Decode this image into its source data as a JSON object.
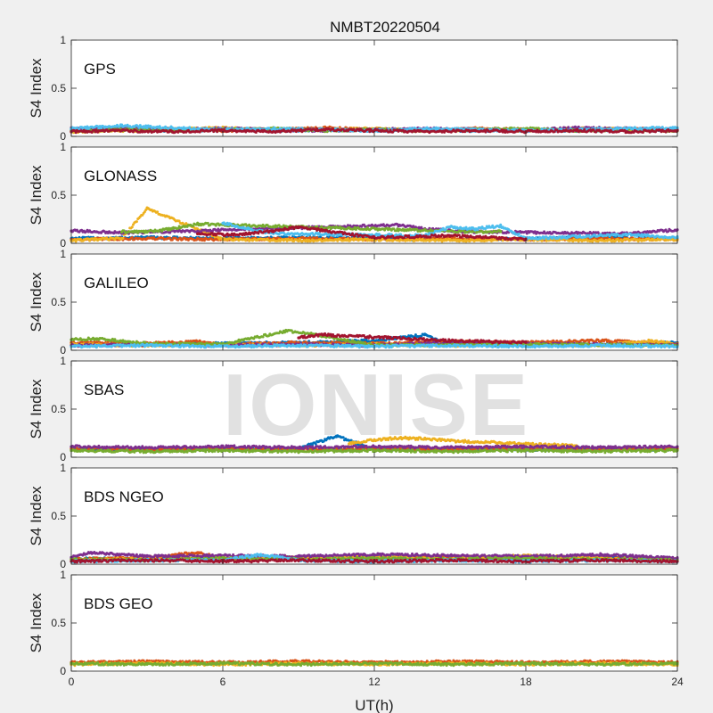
{
  "chart_data": {
    "type": "scatter",
    "title": "NMBT20220504",
    "xlabel": "UT(h)",
    "ylabel": "S4 Index",
    "xlim": [
      0,
      24
    ],
    "ylim": [
      0,
      1
    ],
    "xticks": [
      0,
      6,
      12,
      18,
      24
    ],
    "yticks": [
      0,
      0.5,
      1
    ],
    "grid": false,
    "series_colors": [
      "#0072bd",
      "#d95319",
      "#edb120",
      "#7e2f8e",
      "#77ac30",
      "#4dbeee",
      "#a2142f"
    ],
    "panels": [
      {
        "name": "GPS",
        "series": [
          {
            "color": "#0072bd",
            "x": [
              0,
              2,
              4,
              6,
              8,
              10,
              12,
              14,
              16,
              18,
              20,
              22,
              24
            ],
            "y": [
              0.07,
              0.08,
              0.06,
              0.07,
              0.06,
              0.07,
              0.06,
              0.07,
              0.06,
              0.07,
              0.06,
              0.07,
              0.06
            ]
          },
          {
            "color": "#d95319",
            "x": [
              0,
              2,
              4,
              6,
              8,
              10,
              12,
              14,
              16,
              18,
              20,
              22,
              24
            ],
            "y": [
              0.06,
              0.07,
              0.08,
              0.06,
              0.07,
              0.09,
              0.07,
              0.06,
              0.08,
              0.07,
              0.06,
              0.08,
              0.07
            ]
          },
          {
            "color": "#edb120",
            "x": [
              0,
              2,
              4,
              6,
              8,
              10,
              12,
              14,
              16,
              18,
              20,
              22,
              24
            ],
            "y": [
              0.05,
              0.06,
              0.07,
              0.09,
              0.06,
              0.07,
              0.08,
              0.06,
              0.07,
              0.06,
              0.08,
              0.07,
              0.06
            ]
          },
          {
            "color": "#7e2f8e",
            "x": [
              0,
              2,
              4,
              6,
              8,
              10,
              12,
              14,
              16,
              18,
              20,
              22,
              24
            ],
            "y": [
              0.09,
              0.08,
              0.07,
              0.08,
              0.07,
              0.06,
              0.07,
              0.08,
              0.07,
              0.06,
              0.09,
              0.08,
              0.07
            ]
          },
          {
            "color": "#77ac30",
            "x": [
              0,
              2,
              4,
              6,
              8,
              10,
              12,
              14,
              16,
              18,
              20,
              22,
              24
            ],
            "y": [
              0.06,
              0.07,
              0.06,
              0.07,
              0.08,
              0.06,
              0.07,
              0.06,
              0.07,
              0.08,
              0.06,
              0.07,
              0.06
            ]
          },
          {
            "color": "#4dbeee",
            "x": [
              0,
              2,
              4,
              6,
              8,
              10,
              12,
              14,
              16,
              18,
              20,
              22,
              24
            ],
            "y": [
              0.08,
              0.11,
              0.09,
              0.07,
              0.08,
              0.07,
              0.06,
              0.08,
              0.07,
              0.06,
              0.07,
              0.08,
              0.09
            ]
          },
          {
            "color": "#a2142f",
            "x": [
              0,
              2,
              4,
              6,
              8,
              10,
              12,
              14,
              16,
              18,
              20,
              22,
              24
            ],
            "y": [
              0.05,
              0.06,
              0.05,
              0.06,
              0.05,
              0.07,
              0.06,
              0.05,
              0.06,
              0.05,
              0.06,
              0.05,
              0.06
            ]
          }
        ]
      },
      {
        "name": "GLONASS",
        "series": [
          {
            "color": "#0072bd",
            "x": [
              0,
              3,
              6,
              9,
              12,
              15,
              18,
              21,
              24
            ],
            "y": [
              0.05,
              0.06,
              0.05,
              0.06,
              0.05,
              0.04,
              0.05,
              0.06,
              0.05
            ]
          },
          {
            "color": "#d95319",
            "x": [
              0,
              3,
              6,
              9,
              12,
              15,
              18,
              21,
              24
            ],
            "y": [
              0.04,
              0.05,
              0.04,
              0.05,
              0.04,
              0.05,
              0.04,
              0.05,
              0.04
            ]
          },
          {
            "color": "#edb120",
            "x": [
              0,
              1,
              2,
              3,
              6,
              9,
              12,
              15,
              18,
              21,
              24
            ],
            "y": [
              0.03,
              0.04,
              0.05,
              0.36,
              0.04,
              0.03,
              0.04,
              0.03,
              0.04,
              0.03,
              0.04
            ]
          },
          {
            "color": "#7e2f8e",
            "x": [
              0,
              1,
              2,
              13,
              14,
              15,
              16,
              22,
              23,
              24
            ],
            "y": [
              0.13,
              0.12,
              0.11,
              0.19,
              0.15,
              0.13,
              0.12,
              0.1,
              0.12,
              0.14
            ]
          },
          {
            "color": "#77ac30",
            "x": [
              2,
              3,
              4,
              5,
              16,
              17
            ],
            "y": [
              0.12,
              0.12,
              0.15,
              0.2,
              0.12,
              0.12
            ]
          },
          {
            "color": "#4dbeee",
            "x": [
              6,
              7,
              8,
              14,
              15,
              16,
              17,
              18,
              20,
              22,
              24
            ],
            "y": [
              0.21,
              0.15,
              0.1,
              0.08,
              0.17,
              0.15,
              0.18,
              0.05,
              0.07,
              0.09,
              0.06
            ]
          },
          {
            "color": "#a2142f",
            "x": [
              5,
              6,
              7,
              8,
              9,
              12,
              15,
              18
            ],
            "y": [
              0.1,
              0.09,
              0.1,
              0.13,
              0.17,
              0.06,
              0.08,
              0.04
            ]
          }
        ]
      },
      {
        "name": "GALILEO",
        "series": [
          {
            "color": "#0072bd",
            "x": [
              0,
              3,
              6,
              9,
              12,
              14,
              15,
              18,
              21,
              24
            ],
            "y": [
              0.05,
              0.06,
              0.07,
              0.08,
              0.1,
              0.16,
              0.06,
              0.05,
              0.06,
              0.08
            ]
          },
          {
            "color": "#d95319",
            "x": [
              0,
              3,
              5,
              6,
              9,
              12,
              15,
              18,
              21,
              24
            ],
            "y": [
              0.08,
              0.07,
              0.09,
              0.06,
              0.08,
              0.07,
              0.09,
              0.08,
              0.1,
              0.07
            ]
          },
          {
            "color": "#edb120",
            "x": [
              0,
              3,
              6,
              9,
              12,
              15,
              18,
              21,
              23,
              24
            ],
            "y": [
              0.06,
              0.05,
              0.06,
              0.05,
              0.06,
              0.05,
              0.06,
              0.05,
              0.1,
              0.06
            ]
          },
          {
            "color": "#7e2f8e",
            "x": [
              0,
              3,
              6,
              9,
              12,
              15,
              18,
              21,
              24
            ],
            "y": [
              0.05,
              0.06,
              0.05,
              0.06,
              0.05,
              0.08,
              0.07,
              0.06,
              0.05
            ]
          },
          {
            "color": "#77ac30",
            "x": [
              0,
              1,
              3,
              6,
              8.5,
              9.5,
              12,
              18,
              24
            ],
            "y": [
              0.11,
              0.12,
              0.07,
              0.06,
              0.2,
              0.17,
              0.05,
              0.06,
              0.05
            ]
          },
          {
            "color": "#4dbeee",
            "x": [
              0,
              3,
              6,
              9,
              12,
              15,
              18,
              21,
              24
            ],
            "y": [
              0.04,
              0.05,
              0.04,
              0.05,
              0.04,
              0.05,
              0.04,
              0.05,
              0.04
            ]
          },
          {
            "color": "#a2142f",
            "x": [
              9,
              10,
              15,
              18
            ],
            "y": [
              0.13,
              0.16,
              0.1,
              0.08
            ]
          }
        ]
      },
      {
        "name": "SBAS",
        "series": [
          {
            "color": "#0072bd",
            "x": [
              0,
              3,
              6,
              9,
              10.5,
              12,
              15,
              18,
              21,
              24
            ],
            "y": [
              0.08,
              0.09,
              0.08,
              0.09,
              0.22,
              0.08,
              0.09,
              0.08,
              0.09,
              0.08
            ]
          },
          {
            "color": "#d95319",
            "x": [
              0,
              3,
              6,
              9,
              12,
              15,
              18,
              21,
              24
            ],
            "y": [
              0.09,
              0.08,
              0.09,
              0.08,
              0.09,
              0.08,
              0.09,
              0.08,
              0.09
            ]
          },
          {
            "color": "#edb120",
            "x": [
              11,
              12,
              13,
              14,
              15,
              16,
              17,
              18,
              19,
              20
            ],
            "y": [
              0.14,
              0.18,
              0.2,
              0.19,
              0.17,
              0.16,
              0.15,
              0.14,
              0.13,
              0.12
            ]
          },
          {
            "color": "#7e2f8e",
            "x": [
              0,
              3,
              6,
              9,
              12,
              15,
              18,
              21,
              24
            ],
            "y": [
              0.11,
              0.1,
              0.11,
              0.1,
              0.11,
              0.1,
              0.11,
              0.1,
              0.11
            ]
          },
          {
            "color": "#77ac30",
            "x": [
              0,
              3,
              6,
              9,
              12,
              15,
              18,
              21,
              24
            ],
            "y": [
              0.07,
              0.06,
              0.07,
              0.06,
              0.07,
              0.06,
              0.07,
              0.06,
              0.07
            ]
          }
        ]
      },
      {
        "name": "BDS NGEO",
        "series": [
          {
            "color": "#0072bd",
            "x": [
              0,
              3,
              6,
              9,
              12,
              15,
              18,
              21,
              24
            ],
            "y": [
              0.06,
              0.05,
              0.06,
              0.07,
              0.08,
              0.07,
              0.06,
              0.08,
              0.05
            ]
          },
          {
            "color": "#d95319",
            "x": [
              0,
              3,
              5,
              6,
              9,
              12,
              15,
              18,
              21,
              24
            ],
            "y": [
              0.05,
              0.07,
              0.12,
              0.06,
              0.07,
              0.06,
              0.08,
              0.07,
              0.06,
              0.05
            ]
          },
          {
            "color": "#edb120",
            "x": [
              0,
              3,
              6,
              9,
              12,
              15,
              18,
              21,
              24
            ],
            "y": [
              0.04,
              0.06,
              0.05,
              0.06,
              0.08,
              0.05,
              0.09,
              0.06,
              0.04
            ]
          },
          {
            "color": "#7e2f8e",
            "x": [
              0,
              0.8,
              3,
              6,
              9,
              12,
              15,
              18,
              21,
              24
            ],
            "y": [
              0.07,
              0.12,
              0.08,
              0.09,
              0.08,
              0.1,
              0.09,
              0.08,
              0.1,
              0.06
            ]
          },
          {
            "color": "#77ac30",
            "x": [
              0,
              3,
              6,
              9,
              12,
              15,
              18,
              21,
              24
            ],
            "y": [
              0.05,
              0.04,
              0.06,
              0.05,
              0.06,
              0.05,
              0.06,
              0.05,
              0.04
            ]
          },
          {
            "color": "#4dbeee",
            "x": [
              0,
              3,
              6,
              7.5,
              9,
              12,
              15,
              18,
              21,
              24
            ],
            "y": [
              0.03,
              0.04,
              0.04,
              0.1,
              0.04,
              0.03,
              0.04,
              0.03,
              0.04,
              0.03
            ]
          },
          {
            "color": "#a2142f",
            "x": [
              0,
              3,
              6,
              9,
              12,
              15,
              18,
              21,
              24
            ],
            "y": [
              0.03,
              0.04,
              0.03,
              0.04,
              0.03,
              0.04,
              0.03,
              0.04,
              0.03
            ]
          }
        ]
      },
      {
        "name": "BDS GEO",
        "series": [
          {
            "color": "#d95319",
            "x": [
              0,
              3,
              6,
              9,
              12,
              15,
              18,
              21,
              24
            ],
            "y": [
              0.09,
              0.1,
              0.09,
              0.1,
              0.09,
              0.1,
              0.09,
              0.1,
              0.09
            ]
          },
          {
            "color": "#edb120",
            "x": [
              0,
              3,
              6,
              9,
              12,
              15,
              18,
              21,
              24
            ],
            "y": [
              0.07,
              0.08,
              0.07,
              0.08,
              0.07,
              0.08,
              0.07,
              0.08,
              0.07
            ]
          },
          {
            "color": "#77ac30",
            "x": [
              0,
              3,
              6,
              9,
              12,
              15,
              18,
              21,
              24
            ],
            "y": [
              0.08,
              0.07,
              0.08,
              0.07,
              0.08,
              0.07,
              0.08,
              0.07,
              0.08
            ]
          }
        ]
      }
    ]
  },
  "watermark": "IONISE"
}
